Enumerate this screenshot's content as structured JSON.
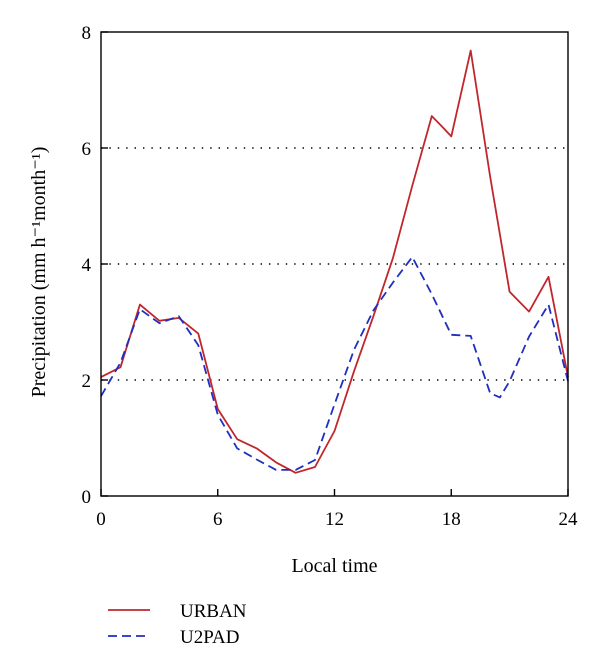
{
  "chart_data": {
    "type": "line",
    "xlabel": "Local time",
    "ylabel": "Precipitation (mm h⁻¹month⁻¹)",
    "xlim": [
      0,
      24
    ],
    "ylim": [
      0,
      8
    ],
    "xticks": [
      0,
      6,
      12,
      18,
      24
    ],
    "yticks": [
      0,
      2,
      4,
      6,
      8
    ],
    "grid": "dotted horizontal at y = 2, 4, 6",
    "legend_position": "below-left",
    "series": [
      {
        "name": "URBAN",
        "color": "#c0272d",
        "dash": "solid",
        "x": [
          0,
          1,
          2,
          3,
          4,
          5,
          6,
          7,
          8,
          9,
          10,
          11,
          12,
          13,
          14,
          15,
          16,
          17,
          17.5,
          18,
          19,
          20,
          21,
          22,
          23,
          24
        ],
        "y": [
          2.05,
          2.22,
          3.3,
          3.02,
          3.07,
          2.8,
          1.5,
          0.98,
          0.82,
          0.58,
          0.4,
          0.5,
          1.12,
          2.15,
          3.1,
          4.1,
          5.35,
          6.55,
          6.38,
          6.2,
          7.68,
          5.5,
          3.52,
          3.18,
          3.78,
          2.05
        ]
      },
      {
        "name": "U2PAD",
        "color": "#1f2fbf",
        "dash": "dashed",
        "x": [
          0,
          1,
          2,
          3,
          4,
          5,
          6,
          7,
          8,
          9,
          10,
          11,
          12,
          13,
          14,
          15,
          16,
          17,
          18,
          19,
          20,
          20.5,
          21,
          22,
          23,
          24
        ],
        "y": [
          1.72,
          2.3,
          3.22,
          2.98,
          3.1,
          2.6,
          1.4,
          0.82,
          0.63,
          0.45,
          0.45,
          0.62,
          1.58,
          2.52,
          3.2,
          3.68,
          4.12,
          3.48,
          2.78,
          2.76,
          1.77,
          1.7,
          1.98,
          2.75,
          3.3,
          1.98
        ]
      }
    ]
  }
}
